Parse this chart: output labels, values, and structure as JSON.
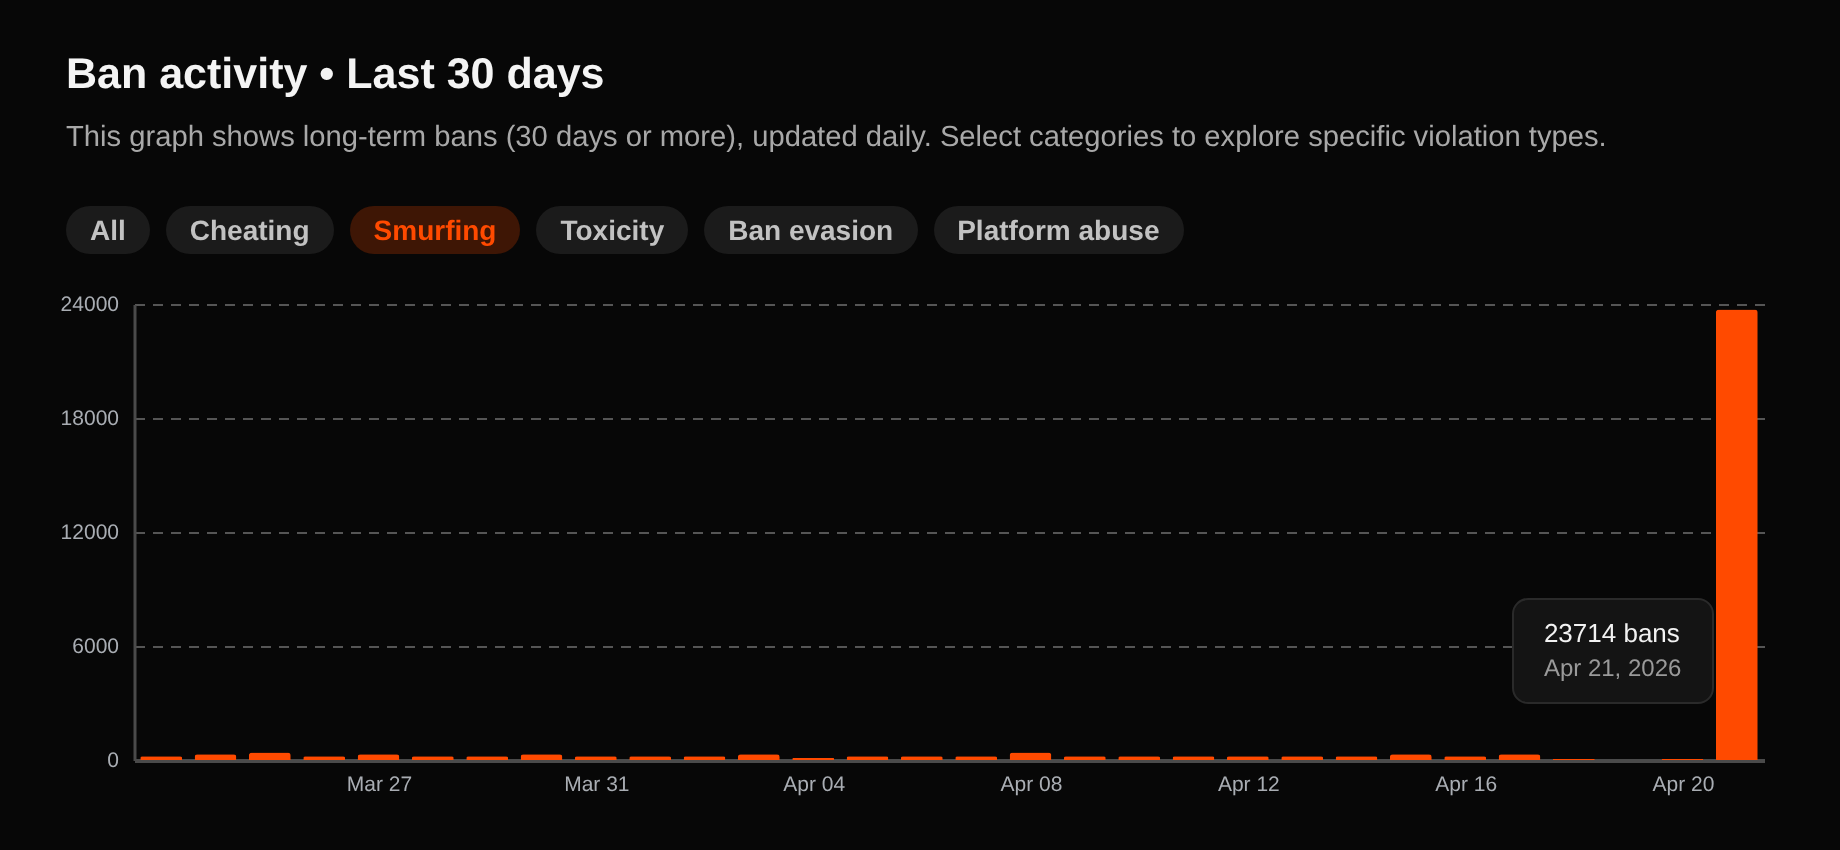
{
  "chart_data": {
    "type": "bar",
    "title": "Ban activity • Last 30 days",
    "subtitle": "This graph shows long-term bans (30 days or more), updated daily. Select categories to explore specific violation types.",
    "x": [
      "2026-03-23",
      "2026-03-24",
      "2026-03-25",
      "2026-03-26",
      "2026-03-27",
      "2026-03-28",
      "2026-03-29",
      "2026-03-30",
      "2026-03-31",
      "2026-04-01",
      "2026-04-02",
      "2026-04-03",
      "2026-04-04",
      "2026-04-05",
      "2026-04-06",
      "2026-04-07",
      "2026-04-08",
      "2026-04-09",
      "2026-04-10",
      "2026-04-11",
      "2026-04-12",
      "2026-04-13",
      "2026-04-14",
      "2026-04-15",
      "2026-04-16",
      "2026-04-17",
      "2026-04-18",
      "2026-04-19",
      "2026-04-20",
      "2026-04-21"
    ],
    "series": [
      {
        "name": "Smurfing",
        "color": "#ff4a00",
        "values": [
          200,
          300,
          400,
          200,
          300,
          200,
          200,
          300,
          200,
          200,
          200,
          300,
          100,
          200,
          200,
          200,
          400,
          200,
          200,
          200,
          200,
          200,
          200,
          300,
          200,
          300,
          50,
          null,
          50,
          23714
        ]
      }
    ],
    "xlim": [
      "2026-03-22T12:00",
      "2026-04-21T12:00"
    ],
    "xticks": [
      {
        "value": "2026-03-27",
        "label": "Mar 27"
      },
      {
        "value": "2026-03-31",
        "label": "Mar 31"
      },
      {
        "value": "2026-04-04",
        "label": "Apr 04"
      },
      {
        "value": "2026-04-08",
        "label": "Apr 08"
      },
      {
        "value": "2026-04-12",
        "label": "Apr 12"
      },
      {
        "value": "2026-04-16",
        "label": "Apr 16"
      },
      {
        "value": "2026-04-20",
        "label": "Apr 20"
      }
    ],
    "ylim": [
      0,
      24000
    ],
    "yticks": [
      0,
      6000,
      12000,
      18000,
      24000
    ],
    "grid": "y",
    "legend": "top left",
    "annotations": [
      "All",
      "Cheating",
      "Toxicity",
      "Ban evasion",
      "Platform abuse",
      "23714 bans",
      "Apr 21, 2026"
    ]
  }
}
